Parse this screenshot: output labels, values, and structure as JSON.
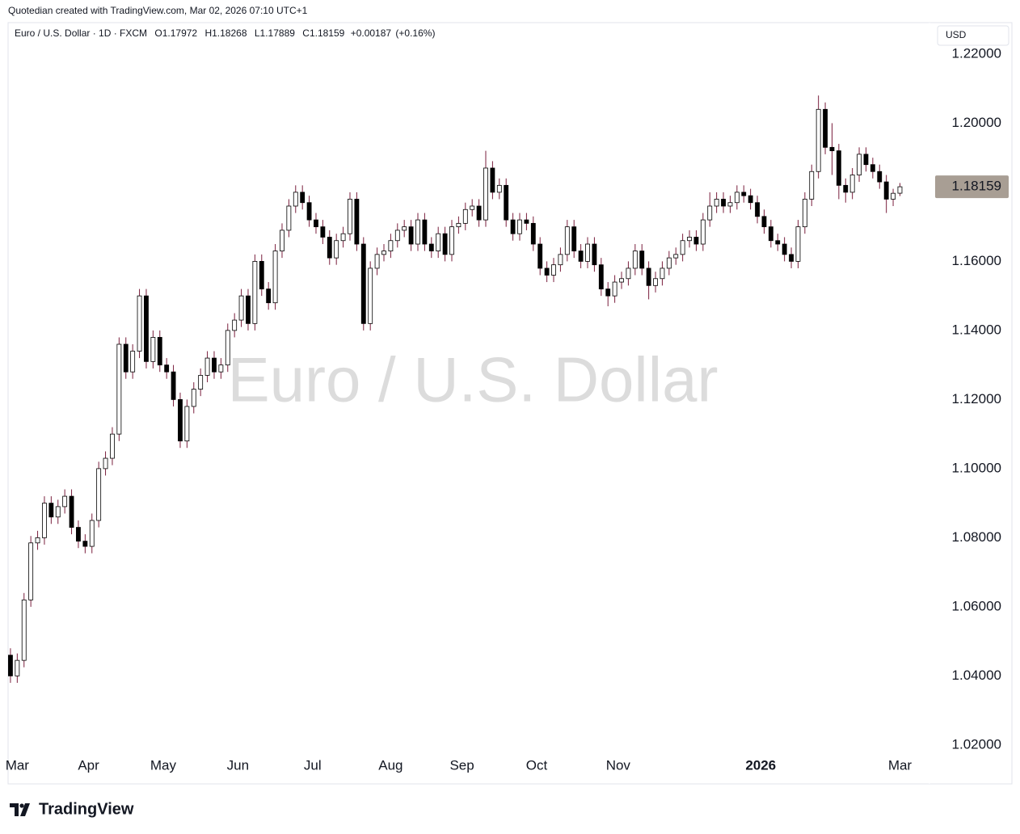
{
  "attribution": "Quotedian created with TradingView.com, Mar 02, 2026 07:10 UTC+1",
  "brand": "TradingView",
  "chart_data": {
    "type": "candlestick",
    "title": "Euro / U.S. Dollar · 1D · FXCM",
    "ohlc_labels": [
      "O",
      "H",
      "L",
      "C"
    ],
    "change": "+0.00187",
    "change_pct": "(+0.16%)",
    "watermark": "Euro / U.S. Dollar",
    "currency": "USD",
    "up_color": "#ffffff",
    "down_color": "#000000",
    "border_color": "#000000",
    "wick_color": "#7a1f3d",
    "last_price_color": "#a89e94",
    "xlim": [
      -0.35,
      135.35
    ],
    "xticks": [
      {
        "value": 1,
        "label": "Mar"
      },
      {
        "value": 11.5,
        "label": "Apr"
      },
      {
        "value": 22.5,
        "label": "May"
      },
      {
        "value": 33.5,
        "label": "Jun"
      },
      {
        "value": 44.5,
        "label": "Jul"
      },
      {
        "value": 56,
        "label": "Aug"
      },
      {
        "value": 66.5,
        "label": "Sep"
      },
      {
        "value": 77.5,
        "label": "Oct"
      },
      {
        "value": 89.5,
        "label": "Nov"
      },
      {
        "value": 110.5,
        "label": "2026",
        "bold": true
      },
      {
        "value": 131,
        "label": "Mar"
      }
    ],
    "ylim": [
      1.0181,
      1.2291
    ],
    "yticks": [
      {
        "value": 1.02,
        "label": "1.02000"
      },
      {
        "value": 1.04,
        "label": "1.04000"
      },
      {
        "value": 1.06,
        "label": "1.06000"
      },
      {
        "value": 1.08,
        "label": "1.08000"
      },
      {
        "value": 1.1,
        "label": "1.10000"
      },
      {
        "value": 1.12,
        "label": "1.12000"
      },
      {
        "value": 1.14,
        "label": "1.14000"
      },
      {
        "value": 1.16,
        "label": "1.16000"
      },
      {
        "value": 1.18,
        "label": "1.18000"
      },
      {
        "value": 1.2,
        "label": "1.20000"
      },
      {
        "value": 1.22,
        "label": "1.22000"
      }
    ],
    "candles": [
      [
        1.046,
        1.048,
        1.038,
        1.04
      ],
      [
        1.04,
        1.0465,
        1.038,
        1.0445
      ],
      [
        1.0445,
        1.064,
        1.0425,
        1.062
      ],
      [
        1.062,
        1.0805,
        1.06,
        1.0785
      ],
      [
        1.0785,
        1.082,
        1.0765,
        1.08
      ],
      [
        1.08,
        1.092,
        1.078,
        1.09
      ],
      [
        1.09,
        1.092,
        1.084,
        1.086
      ],
      [
        1.086,
        1.091,
        1.084,
        1.089
      ],
      [
        1.089,
        1.094,
        1.087,
        1.092
      ],
      [
        1.092,
        1.094,
        1.081,
        1.083
      ],
      [
        1.083,
        1.085,
        1.077,
        1.079
      ],
      [
        1.079,
        1.081,
        1.0755,
        1.0775
      ],
      [
        1.0775,
        1.087,
        1.0755,
        1.085
      ],
      [
        1.085,
        1.102,
        1.083,
        1.1
      ],
      [
        1.1,
        1.105,
        1.098,
        1.103
      ],
      [
        1.103,
        1.112,
        1.101,
        1.11
      ],
      [
        1.11,
        1.138,
        1.108,
        1.136
      ],
      [
        1.136,
        1.138,
        1.126,
        1.128
      ],
      [
        1.128,
        1.136,
        1.126,
        1.134
      ],
      [
        1.134,
        1.152,
        1.132,
        1.15
      ],
      [
        1.15,
        1.152,
        1.129,
        1.131
      ],
      [
        1.131,
        1.14,
        1.129,
        1.138
      ],
      [
        1.138,
        1.14,
        1.128,
        1.13
      ],
      [
        1.13,
        1.132,
        1.126,
        1.128
      ],
      [
        1.128,
        1.13,
        1.118,
        1.12
      ],
      [
        1.12,
        1.122,
        1.106,
        1.108
      ],
      [
        1.108,
        1.12,
        1.106,
        1.118
      ],
      [
        1.118,
        1.125,
        1.116,
        1.123
      ],
      [
        1.123,
        1.129,
        1.121,
        1.127
      ],
      [
        1.127,
        1.134,
        1.125,
        1.132
      ],
      [
        1.132,
        1.134,
        1.126,
        1.128
      ],
      [
        1.128,
        1.132,
        1.126,
        1.13
      ],
      [
        1.13,
        1.142,
        1.128,
        1.14
      ],
      [
        1.14,
        1.145,
        1.138,
        1.143
      ],
      [
        1.143,
        1.152,
        1.141,
        1.15
      ],
      [
        1.15,
        1.152,
        1.14,
        1.142
      ],
      [
        1.142,
        1.162,
        1.14,
        1.16
      ],
      [
        1.16,
        1.162,
        1.15,
        1.152
      ],
      [
        1.152,
        1.154,
        1.146,
        1.148
      ],
      [
        1.148,
        1.165,
        1.146,
        1.163
      ],
      [
        1.163,
        1.171,
        1.161,
        1.169
      ],
      [
        1.169,
        1.178,
        1.167,
        1.176
      ],
      [
        1.176,
        1.182,
        1.174,
        1.18
      ],
      [
        1.18,
        1.182,
        1.175,
        1.177
      ],
      [
        1.177,
        1.179,
        1.17,
        1.172
      ],
      [
        1.172,
        1.174,
        1.168,
        1.17
      ],
      [
        1.17,
        1.172,
        1.165,
        1.167
      ],
      [
        1.167,
        1.169,
        1.159,
        1.161
      ],
      [
        1.161,
        1.168,
        1.159,
        1.166
      ],
      [
        1.166,
        1.17,
        1.164,
        1.168
      ],
      [
        1.168,
        1.18,
        1.166,
        1.178
      ],
      [
        1.178,
        1.18,
        1.163,
        1.165
      ],
      [
        1.165,
        1.167,
        1.14,
        1.142
      ],
      [
        1.142,
        1.16,
        1.14,
        1.158
      ],
      [
        1.158,
        1.164,
        1.156,
        1.162
      ],
      [
        1.162,
        1.165,
        1.16,
        1.163
      ],
      [
        1.163,
        1.168,
        1.161,
        1.166
      ],
      [
        1.166,
        1.171,
        1.164,
        1.169
      ],
      [
        1.169,
        1.172,
        1.167,
        1.17
      ],
      [
        1.17,
        1.172,
        1.163,
        1.165
      ],
      [
        1.165,
        1.174,
        1.163,
        1.172
      ],
      [
        1.172,
        1.174,
        1.163,
        1.165
      ],
      [
        1.165,
        1.167,
        1.161,
        1.163
      ],
      [
        1.163,
        1.17,
        1.161,
        1.168
      ],
      [
        1.168,
        1.17,
        1.16,
        1.162
      ],
      [
        1.162,
        1.172,
        1.16,
        1.17
      ],
      [
        1.17,
        1.173,
        1.168,
        1.171
      ],
      [
        1.171,
        1.177,
        1.169,
        1.175
      ],
      [
        1.175,
        1.178,
        1.173,
        1.176
      ],
      [
        1.176,
        1.178,
        1.17,
        1.172
      ],
      [
        1.172,
        1.192,
        1.17,
        1.187
      ],
      [
        1.187,
        1.189,
        1.178,
        1.18
      ],
      [
        1.18,
        1.184,
        1.178,
        1.182
      ],
      [
        1.182,
        1.184,
        1.17,
        1.172
      ],
      [
        1.172,
        1.174,
        1.166,
        1.168
      ],
      [
        1.168,
        1.174,
        1.166,
        1.172
      ],
      [
        1.172,
        1.174,
        1.169,
        1.171
      ],
      [
        1.171,
        1.173,
        1.163,
        1.165
      ],
      [
        1.165,
        1.167,
        1.156,
        1.158
      ],
      [
        1.158,
        1.16,
        1.154,
        1.156
      ],
      [
        1.156,
        1.161,
        1.154,
        1.159
      ],
      [
        1.159,
        1.164,
        1.157,
        1.162
      ],
      [
        1.162,
        1.172,
        1.16,
        1.17
      ],
      [
        1.17,
        1.172,
        1.161,
        1.163
      ],
      [
        1.163,
        1.165,
        1.158,
        1.16
      ],
      [
        1.16,
        1.167,
        1.158,
        1.165
      ],
      [
        1.165,
        1.167,
        1.157,
        1.159
      ],
      [
        1.159,
        1.161,
        1.15,
        1.152
      ],
      [
        1.152,
        1.154,
        1.147,
        1.15
      ],
      [
        1.15,
        1.156,
        1.148,
        1.154
      ],
      [
        1.154,
        1.157,
        1.152,
        1.155
      ],
      [
        1.155,
        1.16,
        1.153,
        1.158
      ],
      [
        1.158,
        1.165,
        1.156,
        1.163
      ],
      [
        1.163,
        1.165,
        1.156,
        1.158
      ],
      [
        1.158,
        1.16,
        1.149,
        1.153
      ],
      [
        1.153,
        1.157,
        1.151,
        1.155
      ],
      [
        1.155,
        1.16,
        1.153,
        1.158
      ],
      [
        1.158,
        1.163,
        1.156,
        1.161
      ],
      [
        1.161,
        1.164,
        1.159,
        1.162
      ],
      [
        1.162,
        1.168,
        1.16,
        1.166
      ],
      [
        1.166,
        1.169,
        1.164,
        1.167
      ],
      [
        1.167,
        1.169,
        1.163,
        1.165
      ],
      [
        1.165,
        1.174,
        1.163,
        1.172
      ],
      [
        1.172,
        1.18,
        1.17,
        1.176
      ],
      [
        1.176,
        1.18,
        1.174,
        1.178
      ],
      [
        1.178,
        1.18,
        1.174,
        1.176
      ],
      [
        1.176,
        1.179,
        1.174,
        1.177
      ],
      [
        1.177,
        1.182,
        1.175,
        1.18
      ],
      [
        1.18,
        1.182,
        1.177,
        1.179
      ],
      [
        1.179,
        1.181,
        1.175,
        1.177
      ],
      [
        1.177,
        1.179,
        1.171,
        1.173
      ],
      [
        1.173,
        1.175,
        1.168,
        1.17
      ],
      [
        1.17,
        1.172,
        1.164,
        1.166
      ],
      [
        1.166,
        1.168,
        1.163,
        1.165
      ],
      [
        1.165,
        1.167,
        1.16,
        1.162
      ],
      [
        1.162,
        1.164,
        1.158,
        1.16
      ],
      [
        1.16,
        1.172,
        1.158,
        1.17
      ],
      [
        1.17,
        1.18,
        1.168,
        1.178
      ],
      [
        1.178,
        1.188,
        1.176,
        1.186
      ],
      [
        1.186,
        1.208,
        1.184,
        1.204
      ],
      [
        1.204,
        1.206,
        1.191,
        1.193
      ],
      [
        1.193,
        1.2,
        1.185,
        1.192
      ],
      [
        1.192,
        1.194,
        1.178,
        1.182
      ],
      [
        1.182,
        1.184,
        1.177,
        1.18
      ],
      [
        1.18,
        1.187,
        1.178,
        1.185
      ],
      [
        1.185,
        1.193,
        1.183,
        1.191
      ],
      [
        1.191,
        1.193,
        1.186,
        1.188
      ],
      [
        1.188,
        1.19,
        1.184,
        1.186
      ],
      [
        1.186,
        1.188,
        1.181,
        1.183
      ],
      [
        1.183,
        1.185,
        1.174,
        1.178
      ],
      [
        1.178,
        1.181,
        1.176,
        1.1797
      ],
      [
        1.17972,
        1.18268,
        1.17889,
        1.18159
      ]
    ]
  }
}
